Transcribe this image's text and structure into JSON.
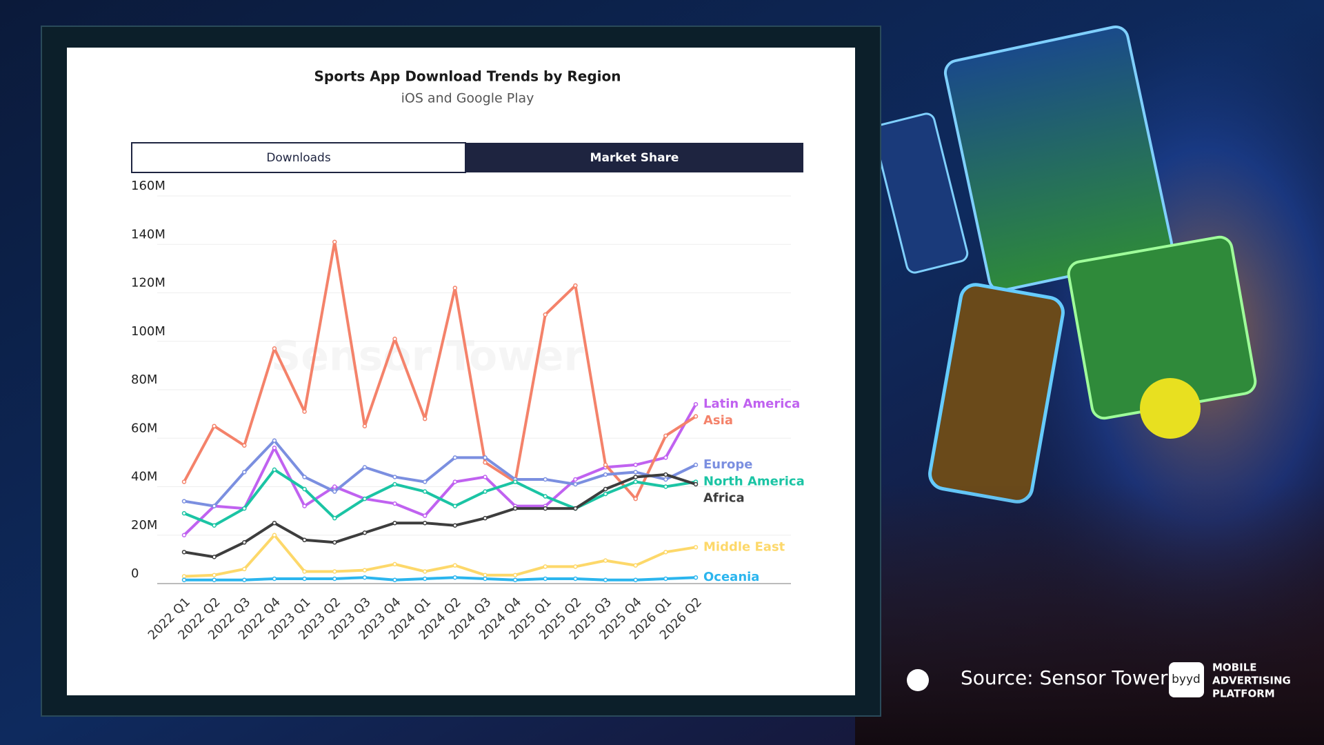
{
  "chart_data": {
    "type": "line",
    "title": "Sports App Download Trends by Region",
    "subtitle": "iOS and Google Play",
    "tabs": [
      "Downloads",
      "Market Share"
    ],
    "watermark": "Sensor Tower",
    "categories": [
      "2022 Q1",
      "2022 Q2",
      "2022 Q3",
      "2022 Q4",
      "2023 Q1",
      "2023 Q2",
      "2023 Q3",
      "2023 Q4",
      "2024 Q1",
      "2024 Q2",
      "2024 Q3",
      "2024 Q4",
      "2025 Q1",
      "2025 Q2",
      "2025 Q3",
      "2025 Q4",
      "2026 Q1",
      "2026 Q2"
    ],
    "ylim": [
      0,
      160
    ],
    "yticks": [
      0,
      {
        "value": 20,
        "label": "20M"
      },
      {
        "value": 40,
        "label": "40M"
      },
      {
        "value": 60,
        "label": "60M"
      },
      {
        "value": 80,
        "label": "80M"
      },
      {
        "value": 100,
        "label": "100M"
      },
      {
        "value": 120,
        "label": "120M"
      },
      {
        "value": 140,
        "label": "140M"
      },
      {
        "value": 160,
        "label": "160M"
      }
    ],
    "grid": true,
    "series": [
      {
        "name": "Latin America",
        "color": "#c062f0",
        "values": [
          20,
          32,
          31,
          56,
          32,
          40,
          35,
          33,
          28,
          42,
          44,
          32,
          32,
          43,
          48,
          49,
          52,
          74
        ]
      },
      {
        "name": "Asia",
        "color": "#f4826a",
        "values": [
          42,
          65,
          57,
          97,
          71,
          141,
          65,
          101,
          68,
          122,
          50,
          42,
          111,
          123,
          49,
          35,
          61,
          69
        ]
      },
      {
        "name": "Europe",
        "color": "#7b8fe0",
        "values": [
          34,
          32,
          46,
          59,
          44,
          38,
          48,
          44,
          42,
          52,
          52,
          43,
          43,
          41,
          45,
          46,
          43,
          49
        ]
      },
      {
        "name": "North America",
        "color": "#1bc4a4",
        "values": [
          29,
          24,
          31,
          47,
          39,
          27,
          35,
          41,
          38,
          32,
          38,
          42,
          36,
          31,
          37,
          42,
          40,
          42
        ]
      },
      {
        "name": "Africa",
        "color": "#3d3d3d",
        "values": [
          13,
          11,
          17,
          25,
          18,
          17,
          21,
          25,
          25,
          24,
          27,
          31,
          31,
          31,
          39,
          44,
          45,
          41
        ]
      },
      {
        "name": "Middle East",
        "color": "#fdd86a",
        "values": [
          3,
          3.5,
          6,
          20,
          5,
          5,
          5.5,
          8,
          5,
          7.5,
          3.5,
          3.5,
          7,
          7,
          9.5,
          7.5,
          13,
          15
        ]
      },
      {
        "name": "Oceania",
        "color": "#2bb5ee",
        "values": [
          1.5,
          1.5,
          1.5,
          2,
          2,
          2,
          2.5,
          1.5,
          2,
          2.5,
          2,
          1.5,
          2,
          2,
          1.5,
          1.5,
          2,
          2.5
        ]
      }
    ],
    "source": "Source: Sensor Tower",
    "brand": {
      "logo": "byyd",
      "tagline": [
        "MOBILE",
        "ADVERTISING",
        "PLATFORM"
      ]
    }
  }
}
